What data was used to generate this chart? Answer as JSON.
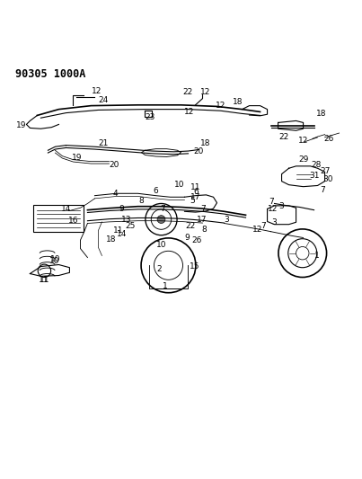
{
  "title": "90305 1000A",
  "bg_color": "#ffffff",
  "text_color": "#000000",
  "fig_width": 4.03,
  "fig_height": 5.33,
  "dpi": 100,
  "lw": 0.8,
  "fs_label": 6.5,
  "fs_title": 8.5
}
